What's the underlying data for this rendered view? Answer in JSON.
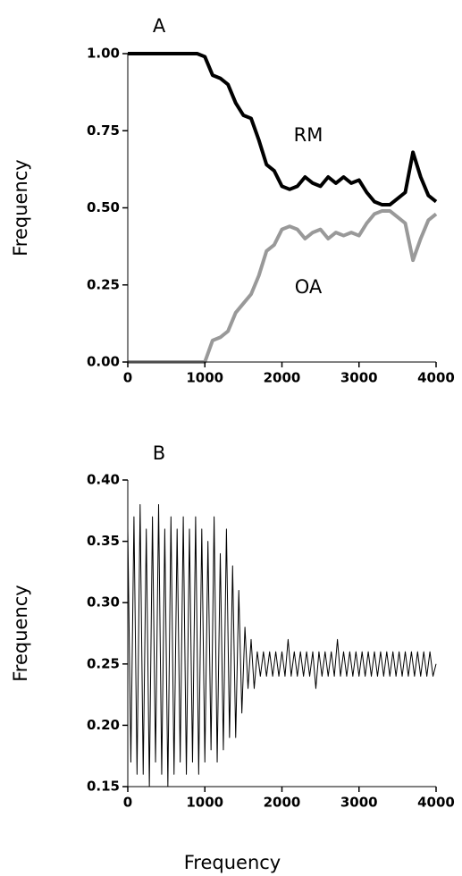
{
  "chart_data": [
    {
      "type": "line",
      "title": "A",
      "y_label": "Frequency",
      "x": [
        0,
        100,
        200,
        300,
        400,
        500,
        600,
        700,
        800,
        900,
        1000,
        1100,
        1200,
        1300,
        1400,
        1500,
        1600,
        1700,
        1800,
        1900,
        2000,
        2100,
        2200,
        2300,
        2400,
        2500,
        2600,
        2700,
        2800,
        2900,
        3000,
        3100,
        3200,
        3300,
        3400,
        3500,
        3600,
        3700,
        3800,
        3900,
        4000
      ],
      "series": [
        {
          "name": "RM",
          "color": "#000000",
          "values": [
            1,
            1,
            1,
            1,
            1,
            1,
            1,
            1,
            1,
            1,
            0.99,
            0.93,
            0.92,
            0.9,
            0.84,
            0.8,
            0.79,
            0.72,
            0.64,
            0.62,
            0.57,
            0.56,
            0.57,
            0.6,
            0.58,
            0.57,
            0.6,
            0.58,
            0.6,
            0.58,
            0.59,
            0.55,
            0.52,
            0.51,
            0.51,
            0.53,
            0.55,
            0.68,
            0.6,
            0.54,
            0.52
          ]
        },
        {
          "name": "OA",
          "color": "#999999",
          "values": [
            0,
            0,
            0,
            0,
            0,
            0,
            0,
            0,
            0,
            0,
            0,
            0.07,
            0.08,
            0.1,
            0.16,
            0.19,
            0.22,
            0.28,
            0.36,
            0.38,
            0.43,
            0.44,
            0.43,
            0.4,
            0.42,
            0.43,
            0.4,
            0.42,
            0.41,
            0.42,
            0.41,
            0.45,
            0.48,
            0.49,
            0.49,
            0.47,
            0.45,
            0.33,
            0.4,
            0.46,
            0.48
          ]
        }
      ],
      "xlim": [
        0,
        4000
      ],
      "xticks": [
        0,
        1000,
        2000,
        3000,
        4000
      ],
      "ylim": [
        0,
        1
      ],
      "yticks": [
        {
          "value": 0,
          "label": "0.00"
        },
        {
          "value": 0.25,
          "label": "0.25"
        },
        {
          "value": 0.5,
          "label": "0.50"
        },
        {
          "value": 0.75,
          "label": "0.75"
        },
        {
          "value": 1,
          "label": "1.00"
        }
      ],
      "grid": false
    },
    {
      "type": "line",
      "title": "B",
      "y_label": "Frequency",
      "x_label": "Frequency",
      "x": [
        0,
        40,
        80,
        120,
        160,
        200,
        240,
        280,
        320,
        360,
        400,
        440,
        480,
        520,
        560,
        600,
        640,
        680,
        720,
        760,
        800,
        840,
        880,
        920,
        960,
        1000,
        1040,
        1080,
        1120,
        1160,
        1200,
        1240,
        1280,
        1320,
        1360,
        1400,
        1440,
        1480,
        1520,
        1560,
        1600,
        1640,
        1680,
        1720,
        1760,
        1800,
        1840,
        1880,
        1920,
        1960,
        2000,
        2040,
        2080,
        2120,
        2160,
        2200,
        2240,
        2280,
        2320,
        2360,
        2400,
        2440,
        2480,
        2520,
        2560,
        2600,
        2640,
        2680,
        2720,
        2760,
        2800,
        2840,
        2880,
        2920,
        2960,
        3000,
        3040,
        3080,
        3120,
        3160,
        3200,
        3240,
        3280,
        3320,
        3360,
        3400,
        3440,
        3480,
        3520,
        3560,
        3600,
        3640,
        3680,
        3720,
        3760,
        3800,
        3840,
        3880,
        3920,
        3960,
        4000
      ],
      "color": "#000000",
      "values": [
        0.36,
        0.17,
        0.37,
        0.16,
        0.38,
        0.16,
        0.36,
        0.15,
        0.37,
        0.17,
        0.38,
        0.16,
        0.36,
        0.15,
        0.37,
        0.16,
        0.36,
        0.17,
        0.37,
        0.16,
        0.36,
        0.17,
        0.37,
        0.16,
        0.36,
        0.17,
        0.35,
        0.18,
        0.37,
        0.17,
        0.34,
        0.18,
        0.36,
        0.19,
        0.33,
        0.19,
        0.31,
        0.21,
        0.28,
        0.23,
        0.27,
        0.23,
        0.26,
        0.24,
        0.26,
        0.24,
        0.26,
        0.24,
        0.26,
        0.24,
        0.26,
        0.24,
        0.27,
        0.24,
        0.26,
        0.24,
        0.26,
        0.24,
        0.26,
        0.24,
        0.26,
        0.23,
        0.26,
        0.24,
        0.26,
        0.24,
        0.26,
        0.24,
        0.27,
        0.24,
        0.26,
        0.24,
        0.26,
        0.24,
        0.26,
        0.24,
        0.26,
        0.24,
        0.26,
        0.24,
        0.26,
        0.24,
        0.26,
        0.24,
        0.26,
        0.24,
        0.26,
        0.24,
        0.26,
        0.24,
        0.26,
        0.24,
        0.26,
        0.24,
        0.26,
        0.24,
        0.26,
        0.24,
        0.26,
        0.24,
        0.25
      ],
      "xlim": [
        0,
        4000
      ],
      "xticks": [
        0,
        1000,
        2000,
        3000,
        4000
      ],
      "ylim": [
        0.15,
        0.4
      ],
      "yticks": [
        {
          "value": 0.15,
          "label": "0.15"
        },
        {
          "value": 0.2,
          "label": "0.20"
        },
        {
          "value": 0.25,
          "label": "0.25"
        },
        {
          "value": 0.3,
          "label": "0.30"
        },
        {
          "value": 0.35,
          "label": "0.35"
        },
        {
          "value": 0.4,
          "label": "0.40"
        }
      ],
      "grid": false
    }
  ]
}
